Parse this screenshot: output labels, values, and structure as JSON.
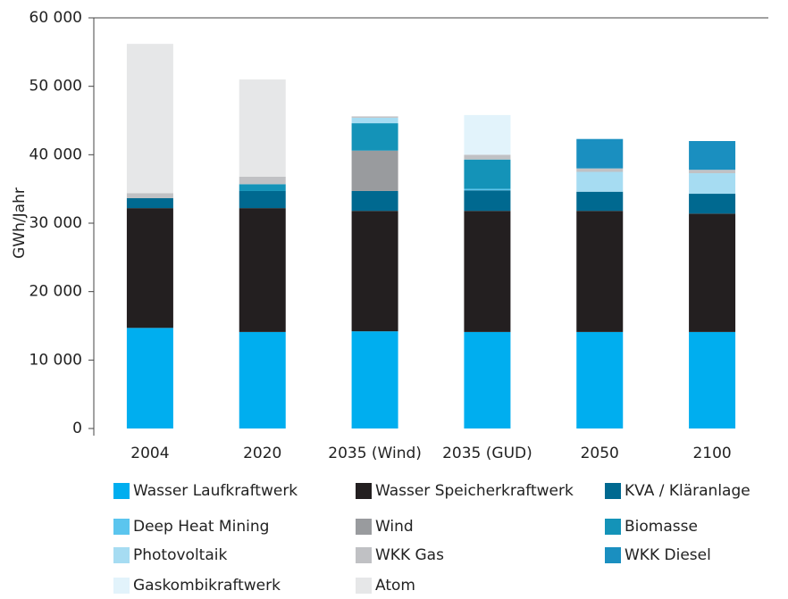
{
  "chart_data": {
    "type": "bar",
    "stacked": true,
    "ylabel": "GWh/Jahr",
    "categories": [
      "2004",
      "2020",
      "2035 (Wind)",
      "2035 (GUD)",
      "2050",
      "2100"
    ],
    "ylim": [
      0,
      60000
    ],
    "yticks": [
      0,
      {
        "value": 10000,
        "label": "10 000"
      },
      {
        "value": 20000,
        "label": "20 000"
      },
      {
        "value": 30000,
        "label": "30 000"
      },
      {
        "value": 40000,
        "label": "40 000"
      },
      {
        "value": 50000,
        "label": "50 000"
      },
      {
        "value": 60000,
        "label": "60 000"
      }
    ],
    "series": [
      {
        "name": "Wasser Laufkraftwerk",
        "color": "#00aeef",
        "values": [
          14700,
          14100,
          14200,
          14100,
          14100,
          14100
        ]
      },
      {
        "name": "Wasser Speicherkraftwerk",
        "color": "#231f20",
        "values": [
          17500,
          18100,
          17600,
          17700,
          17700,
          17300
        ]
      },
      {
        "name": "KVA / Kläranlage",
        "color": "#006990",
        "values": [
          1450,
          2500,
          2900,
          3000,
          2800,
          2900
        ]
      },
      {
        "name": "Deep Heat Mining",
        "color": "#5bc5ee",
        "values": [
          0,
          0,
          0,
          200,
          0,
          0
        ]
      },
      {
        "name": "Wind",
        "color": "#999b9e",
        "values": [
          0,
          0,
          5900,
          0,
          0,
          0
        ]
      },
      {
        "name": "Biomasse",
        "color": "#1493b8",
        "values": [
          0,
          1000,
          4000,
          4300,
          0,
          0
        ]
      },
      {
        "name": "Photovoltaik",
        "color": "#a6dcf2",
        "values": [
          0,
          0,
          800,
          0,
          2900,
          3000
        ]
      },
      {
        "name": "WKK Gas",
        "color": "#c0c1c4",
        "values": [
          750,
          1100,
          200,
          700,
          500,
          500
        ]
      },
      {
        "name": "WKK Diesel",
        "color": "#1a8fc0",
        "values": [
          0,
          0,
          0,
          0,
          4300,
          4200
        ]
      },
      {
        "name": "Gaskombikraftwerk",
        "color": "#e2f3fb",
        "values": [
          0,
          0,
          0,
          5800,
          0,
          0
        ]
      },
      {
        "name": "Atom",
        "color": "#e6e7e8",
        "values": [
          21800,
          14200,
          0,
          0,
          0,
          0
        ]
      }
    ]
  }
}
